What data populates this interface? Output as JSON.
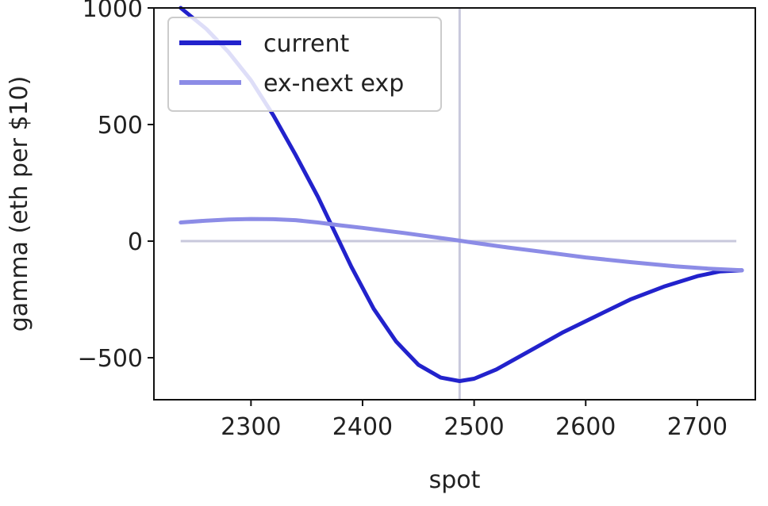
{
  "chart_data": {
    "type": "line",
    "title": "",
    "xlabel": "spot",
    "ylabel": "gamma (eth per $10)",
    "xlim": [
      2213,
      2752
    ],
    "ylim": [
      -680,
      1000
    ],
    "xticks": [
      2300,
      2400,
      2500,
      2600,
      2700
    ],
    "yticks": [
      -500,
      0,
      500,
      1000
    ],
    "xtick_labels": [
      "2300",
      "2400",
      "2500",
      "2600",
      "2700"
    ],
    "ytick_labels": [
      "−500",
      "0",
      "500",
      "1000"
    ],
    "grid": false,
    "legend_position": "top-left",
    "reference_lines": {
      "horizontal_y": 0,
      "horizontal_x_range": [
        2237,
        2735
      ],
      "vertical_x": 2487,
      "color": "#c8c8dc"
    },
    "series": [
      {
        "name": "current",
        "color": "#2222cc",
        "line_width": "thick",
        "x": [
          2237,
          2260,
          2280,
          2300,
          2320,
          2340,
          2360,
          2375,
          2390,
          2410,
          2430,
          2450,
          2470,
          2487,
          2500,
          2520,
          2550,
          2580,
          2610,
          2640,
          2670,
          2700,
          2720,
          2740
        ],
        "y": [
          1000,
          910,
          810,
          690,
          540,
          370,
          190,
          40,
          -110,
          -290,
          -430,
          -530,
          -585,
          -600,
          -590,
          -550,
          -470,
          -390,
          -320,
          -250,
          -195,
          -150,
          -130,
          -125
        ]
      },
      {
        "name": "ex-next exp",
        "color": "#8c8ce6",
        "line_width": "thick",
        "x": [
          2237,
          2260,
          2280,
          2300,
          2320,
          2340,
          2360,
          2380,
          2400,
          2420,
          2440,
          2460,
          2480,
          2500,
          2530,
          2560,
          2600,
          2640,
          2680,
          2710,
          2740
        ],
        "y": [
          80,
          88,
          93,
          95,
          94,
          90,
          80,
          68,
          57,
          45,
          33,
          20,
          7,
          -7,
          -27,
          -45,
          -70,
          -90,
          -108,
          -118,
          -125
        ]
      }
    ]
  }
}
